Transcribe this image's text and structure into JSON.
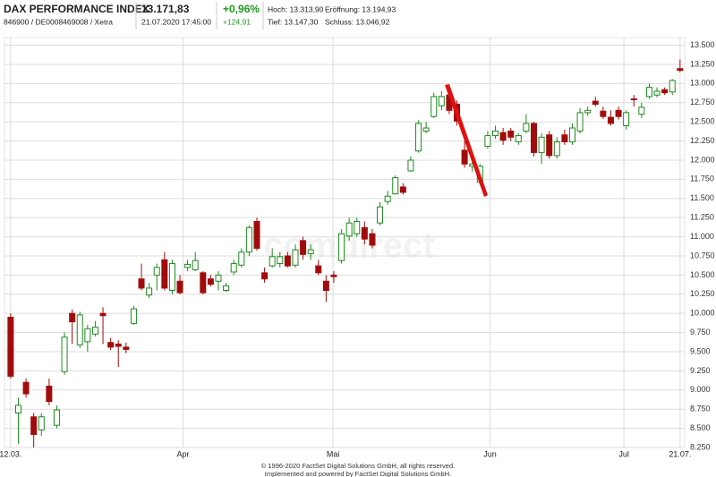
{
  "header": {
    "name": "DAX PERFORMANCE INDEX",
    "ids": "846900 / DE0008469008 / Xetra",
    "price": "13.171,83",
    "time": "21.07.2020 17:45:00",
    "change_pct": "+0,96%",
    "change_abs": "+124,91",
    "high": "Hoch: 13.313,90",
    "low": "Tief: 13.147,30",
    "open": "Eröffnung: 13.194,93",
    "close": "Schluss: 13.046,92"
  },
  "chart_data": {
    "type": "candlestick",
    "watermark": "comdirect",
    "open": [
      9950,
      8700,
      9100,
      8650,
      8480,
      9050,
      8540,
      9240,
      10000,
      9590,
      9630,
      9730,
      10000,
      9620,
      9600,
      9560,
      9870,
      10450,
      10240,
      10500,
      10700,
      10300,
      10420,
      10600,
      10570,
      10530,
      10450,
      10420,
      10300,
      10540,
      10630,
      10800,
      11200,
      10530,
      10620,
      10650,
      10750,
      10630,
      10950,
      10780,
      10620,
      10420,
      10500,
      10690,
      11010,
      11040,
      11120,
      11040,
      11180,
      11460,
      11560,
      11650,
      11860,
      12120,
      12380,
      12570,
      12710,
      12850,
      12730,
      12130,
      11920,
      11710,
      12180,
      12320,
      12360,
      12380,
      12240,
      12380,
      12480,
      12100,
      12330,
      12060,
      12330,
      12240,
      12380,
      12620,
      12770,
      12640,
      12560,
      12650,
      12450,
      12800,
      12600,
      12830,
      12850,
      12920,
      12890,
      13194.93
    ],
    "high": [
      10000,
      8900,
      9150,
      8700,
      8700,
      9150,
      8800,
      9750,
      10050,
      10020,
      9850,
      9900,
      10080,
      9680,
      9650,
      9620,
      10100,
      10650,
      10400,
      10650,
      10800,
      10700,
      10500,
      10700,
      10800,
      10550,
      10500,
      10550,
      10400,
      10700,
      10850,
      11150,
      11250,
      10600,
      10850,
      10800,
      10800,
      10900,
      11000,
      10900,
      10700,
      10500,
      10550,
      11100,
      11250,
      11250,
      11200,
      11100,
      11450,
      11600,
      11800,
      11700,
      12050,
      12520,
      12500,
      12880,
      12900,
      12870,
      12780,
      12250,
      12050,
      11950,
      12380,
      12450,
      12420,
      12420,
      12350,
      12600,
      12500,
      12350,
      12380,
      12300,
      12400,
      12480,
      12680,
      12700,
      12830,
      12700,
      12650,
      12700,
      12650,
      12850,
      12750,
      13000,
      12950,
      12950,
      13060,
      13313.9
    ],
    "low": [
      9150,
      8300,
      8900,
      8250,
      8400,
      8800,
      8500,
      9200,
      9600,
      9550,
      9500,
      9700,
      9600,
      9520,
      9300,
      9480,
      9850,
      10300,
      10200,
      10300,
      10300,
      10250,
      10250,
      10550,
      10550,
      10250,
      10350,
      10300,
      10280,
      10500,
      10600,
      10750,
      10820,
      10400,
      10600,
      10600,
      10600,
      10600,
      10700,
      10700,
      10500,
      10150,
      10400,
      10650,
      10950,
      11000,
      10900,
      10850,
      11150,
      11420,
      11550,
      11550,
      11850,
      12100,
      12350,
      12550,
      12650,
      12600,
      12450,
      11900,
      11850,
      11680,
      12150,
      12280,
      12200,
      12250,
      12200,
      12350,
      12050,
      11950,
      12020,
      12020,
      12200,
      12200,
      12350,
      12580,
      12700,
      12540,
      12450,
      12530,
      12400,
      12700,
      12550,
      12800,
      12820,
      12850,
      12850,
      13147.3
    ],
    "close": [
      9180,
      8800,
      8950,
      8420,
      8650,
      8850,
      8740,
      9690,
      9890,
      9980,
      9800,
      9820,
      9970,
      9560,
      9570,
      9530,
      10060,
      10330,
      10330,
      10600,
      10330,
      10650,
      10270,
      10640,
      10690,
      10270,
      10380,
      10500,
      10360,
      10650,
      10800,
      11120,
      10850,
      10450,
      10740,
      10740,
      10620,
      10830,
      10770,
      10830,
      10530,
      10300,
      10480,
      11040,
      11180,
      11200,
      10970,
      10890,
      11390,
      11530,
      11770,
      11580,
      12000,
      12480,
      12420,
      12830,
      12830,
      12650,
      12510,
      11950,
      11950,
      11920,
      12320,
      12380,
      12260,
      12300,
      12320,
      12480,
      12100,
      12300,
      12060,
      12240,
      12240,
      12420,
      12620,
      12650,
      12730,
      12570,
      12480,
      12570,
      12620,
      12790,
      12690,
      12950,
      12900,
      12880,
      13040,
      13171.83
    ],
    "up_color": "#1f8a1f",
    "down_color": "#a00c0c",
    "xlim": [
      -0.8,
      87.6
    ],
    "xticks": [
      {
        "value": 0,
        "label": "12.03."
      },
      {
        "value": 22.4,
        "label": "Apr"
      },
      {
        "value": 41.9,
        "label": "Mai"
      },
      {
        "value": 62.3,
        "label": "Jun"
      },
      {
        "value": 79.7,
        "label": "Jul"
      },
      {
        "value": 87,
        "label": "21.07."
      }
    ],
    "ylim": [
      8250,
      13600
    ],
    "yticks": [
      {
        "value": 8250,
        "label": "8.250"
      },
      {
        "value": 8500,
        "label": "8.500"
      },
      {
        "value": 8750,
        "label": "8.750"
      },
      {
        "value": 9000,
        "label": "9.000"
      },
      {
        "value": 9250,
        "label": "9.250"
      },
      {
        "value": 9500,
        "label": "9.500"
      },
      {
        "value": 9750,
        "label": "9.750"
      },
      {
        "value": 10000,
        "label": "10.000"
      },
      {
        "value": 10250,
        "label": "10.250"
      },
      {
        "value": 10500,
        "label": "10.500"
      },
      {
        "value": 10750,
        "label": "10.750"
      },
      {
        "value": 11000,
        "label": "11.000"
      },
      {
        "value": 11250,
        "label": "11.250"
      },
      {
        "value": 11500,
        "label": "11.500"
      },
      {
        "value": 11750,
        "label": "11.750"
      },
      {
        "value": 12000,
        "label": "12.000"
      },
      {
        "value": 12250,
        "label": "12.250"
      },
      {
        "value": 12500,
        "label": "12.500"
      },
      {
        "value": 12750,
        "label": "12.750"
      },
      {
        "value": 13000,
        "label": "13.000"
      },
      {
        "value": 13250,
        "label": "13.250"
      },
      {
        "value": 13500,
        "label": "13.500"
      }
    ],
    "grid": true
  },
  "footer": {
    "line1": "© 1996-2020 FactSet Digital Solutions GmbH, all rights reserved.",
    "line2": "Implemented and powered by FactSet Digital Solutions GmbH."
  }
}
